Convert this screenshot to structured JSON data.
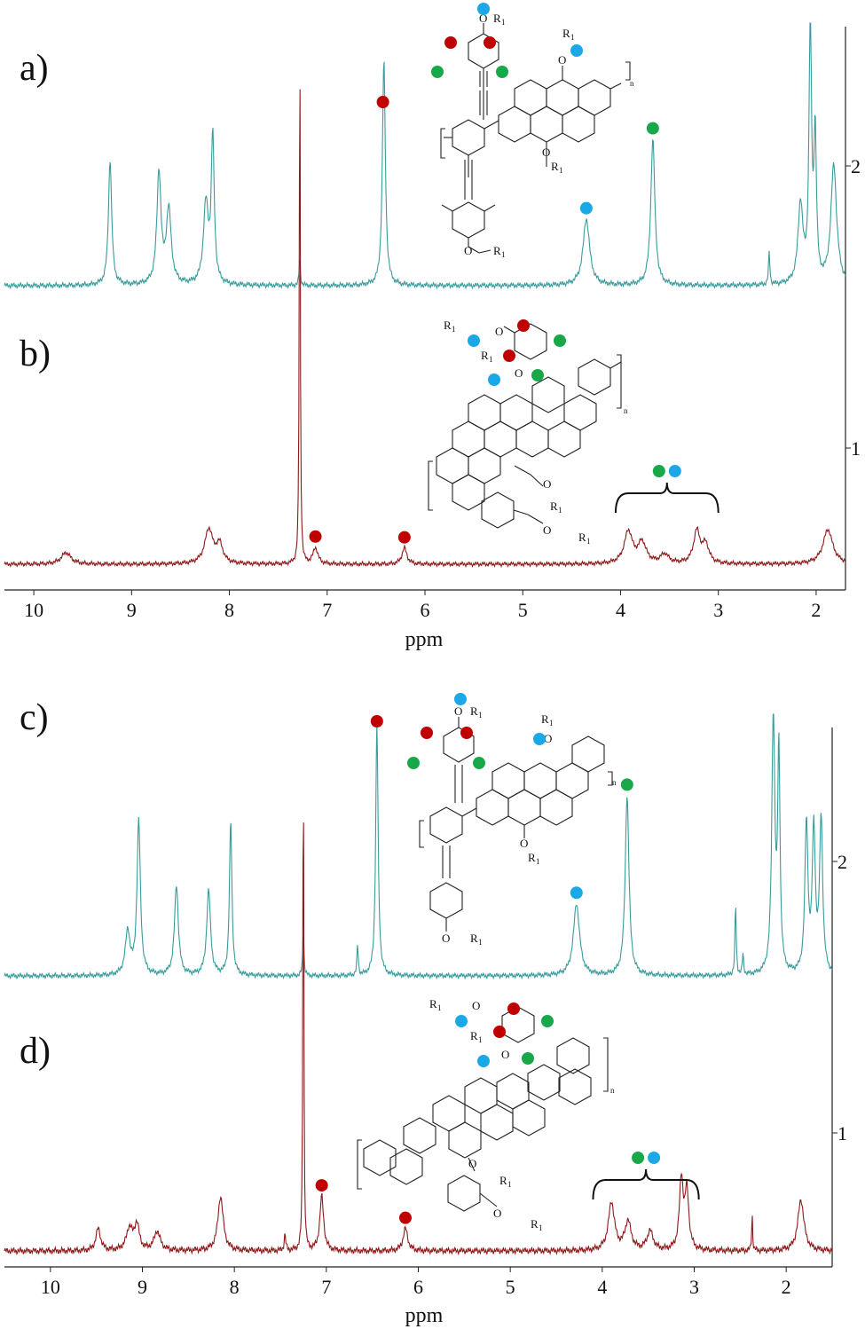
{
  "figure": {
    "panels": [
      {
        "label": "a)"
      },
      {
        "label": "b)"
      },
      {
        "label": "c)"
      },
      {
        "label": "d)"
      }
    ],
    "right_axis_labels": {
      "top": [
        "2",
        "1"
      ],
      "bottom": [
        "2",
        "1"
      ]
    },
    "structure_text": {
      "R": "R",
      "sub": "1",
      "O": "O",
      "n": "n"
    }
  },
  "marker_colors": {
    "red": "#c00000",
    "green": "#18a84a",
    "blue": "#1ba8e6"
  },
  "line_colors": {
    "teal": "#3a9b9b",
    "maroon": "#8b1a1a"
  },
  "chart_data": [
    {
      "type": "line",
      "xlabel": "ppm",
      "xlim": [
        10.3,
        1.7
      ],
      "x_ticks": [
        10,
        9,
        8,
        7,
        6,
        5,
        4,
        3,
        2
      ],
      "series": [
        {
          "panel": "a)",
          "color": "teal",
          "peaks": [
            {
              "ppm": 9.22,
              "height": 0.47,
              "width": 0.02
            },
            {
              "ppm": 8.72,
              "height": 0.42,
              "width": 0.025
            },
            {
              "ppm": 8.62,
              "height": 0.28,
              "width": 0.03
            },
            {
              "ppm": 8.24,
              "height": 0.3,
              "width": 0.03
            },
            {
              "ppm": 8.17,
              "height": 0.55,
              "width": 0.018
            },
            {
              "ppm": 7.28,
              "height": 0.1,
              "width": 0.008
            },
            {
              "ppm": 6.42,
              "height": 0.85,
              "width": 0.018
            },
            {
              "ppm": 4.35,
              "height": 0.25,
              "width": 0.04
            },
            {
              "ppm": 3.67,
              "height": 0.55,
              "width": 0.025
            },
            {
              "ppm": 2.48,
              "height": 0.12,
              "width": 0.008
            },
            {
              "ppm": 2.16,
              "height": 0.3,
              "width": 0.03
            },
            {
              "ppm": 2.06,
              "height": 1.0,
              "width": 0.015
            },
            {
              "ppm": 2.01,
              "height": 0.55,
              "width": 0.015
            },
            {
              "ppm": 1.82,
              "height": 0.45,
              "width": 0.035
            }
          ]
        },
        {
          "panel": "b)",
          "color": "maroon",
          "peaks": [
            {
              "ppm": 9.67,
              "height": 0.05,
              "width": 0.06
            },
            {
              "ppm": 8.21,
              "height": 0.15,
              "width": 0.05
            },
            {
              "ppm": 8.1,
              "height": 0.08,
              "width": 0.04
            },
            {
              "ppm": 7.28,
              "height": 2.35,
              "width": 0.006
            },
            {
              "ppm": 7.12,
              "height": 0.07,
              "width": 0.03
            },
            {
              "ppm": 6.21,
              "height": 0.07,
              "width": 0.03
            },
            {
              "ppm": 3.92,
              "height": 0.14,
              "width": 0.05
            },
            {
              "ppm": 3.78,
              "height": 0.09,
              "width": 0.05
            },
            {
              "ppm": 3.55,
              "height": 0.04,
              "width": 0.05
            },
            {
              "ppm": 3.22,
              "height": 0.14,
              "width": 0.04
            },
            {
              "ppm": 3.13,
              "height": 0.08,
              "width": 0.04
            },
            {
              "ppm": 1.88,
              "height": 0.15,
              "width": 0.06
            }
          ]
        }
      ],
      "markers": [
        {
          "panel": "a)",
          "ppm": 6.43,
          "color": "red"
        },
        {
          "panel": "a)",
          "ppm": 4.35,
          "color": "blue"
        },
        {
          "panel": "a)",
          "ppm": 3.67,
          "color": "green"
        },
        {
          "panel": "b)",
          "ppm": 7.12,
          "color": "red"
        },
        {
          "panel": "b)",
          "ppm": 6.21,
          "color": "red"
        }
      ],
      "brace": {
        "panel": "b)",
        "from_ppm": 4.05,
        "to_ppm": 3.0,
        "colors": [
          "green",
          "blue"
        ]
      }
    },
    {
      "type": "line",
      "xlabel": "ppm",
      "xlim": [
        10.5,
        1.5
      ],
      "x_ticks": [
        10,
        9,
        8,
        7,
        6,
        5,
        4,
        3,
        2
      ],
      "series": [
        {
          "panel": "c)",
          "color": "teal",
          "peaks": [
            {
              "ppm": 9.16,
              "height": 0.17,
              "width": 0.03
            },
            {
              "ppm": 9.04,
              "height": 0.6,
              "width": 0.022
            },
            {
              "ppm": 8.63,
              "height": 0.35,
              "width": 0.025
            },
            {
              "ppm": 8.28,
              "height": 0.33,
              "width": 0.025
            },
            {
              "ppm": 8.04,
              "height": 0.6,
              "width": 0.016
            },
            {
              "ppm": 7.25,
              "height": 0.18,
              "width": 0.008
            },
            {
              "ppm": 6.66,
              "height": 0.12,
              "width": 0.008
            },
            {
              "ppm": 6.45,
              "height": 0.98,
              "width": 0.016
            },
            {
              "ppm": 4.28,
              "height": 0.28,
              "width": 0.04
            },
            {
              "ppm": 3.73,
              "height": 0.7,
              "width": 0.025
            },
            {
              "ppm": 2.55,
              "height": 0.28,
              "width": 0.008
            },
            {
              "ppm": 2.47,
              "height": 0.08,
              "width": 0.008
            },
            {
              "ppm": 2.14,
              "height": 1.0,
              "width": 0.02
            },
            {
              "ppm": 2.08,
              "height": 0.85,
              "width": 0.015
            },
            {
              "ppm": 1.78,
              "height": 0.58,
              "width": 0.02
            },
            {
              "ppm": 1.7,
              "height": 0.55,
              "width": 0.02
            },
            {
              "ppm": 1.62,
              "height": 0.6,
              "width": 0.02
            }
          ]
        },
        {
          "panel": "d)",
          "color": "maroon",
          "peaks": [
            {
              "ppm": 9.48,
              "height": 0.07,
              "width": 0.03
            },
            {
              "ppm": 9.14,
              "height": 0.07,
              "width": 0.04
            },
            {
              "ppm": 9.06,
              "height": 0.08,
              "width": 0.03
            },
            {
              "ppm": 8.84,
              "height": 0.06,
              "width": 0.04
            },
            {
              "ppm": 8.15,
              "height": 0.17,
              "width": 0.035
            },
            {
              "ppm": 7.45,
              "height": 0.05,
              "width": 0.01
            },
            {
              "ppm": 7.25,
              "height": 1.65,
              "width": 0.006
            },
            {
              "ppm": 7.05,
              "height": 0.17,
              "width": 0.025
            },
            {
              "ppm": 6.14,
              "height": 0.07,
              "width": 0.03
            },
            {
              "ppm": 3.9,
              "height": 0.15,
              "width": 0.04
            },
            {
              "ppm": 3.72,
              "height": 0.09,
              "width": 0.04
            },
            {
              "ppm": 3.48,
              "height": 0.06,
              "width": 0.04
            },
            {
              "ppm": 3.14,
              "height": 0.22,
              "width": 0.025
            },
            {
              "ppm": 3.08,
              "height": 0.18,
              "width": 0.025
            },
            {
              "ppm": 2.37,
              "height": 0.12,
              "width": 0.006
            },
            {
              "ppm": 1.84,
              "height": 0.16,
              "width": 0.04
            }
          ]
        }
      ],
      "markers": [
        {
          "panel": "c)",
          "ppm": 6.45,
          "color": "red"
        },
        {
          "panel": "c)",
          "ppm": 4.28,
          "color": "blue"
        },
        {
          "panel": "c)",
          "ppm": 3.73,
          "color": "green"
        },
        {
          "panel": "d)",
          "ppm": 7.05,
          "color": "red"
        },
        {
          "panel": "d)",
          "ppm": 6.14,
          "color": "red"
        }
      ],
      "brace": {
        "panel": "d)",
        "from_ppm": 4.1,
        "to_ppm": 2.95,
        "colors": [
          "green",
          "blue"
        ]
      }
    }
  ]
}
